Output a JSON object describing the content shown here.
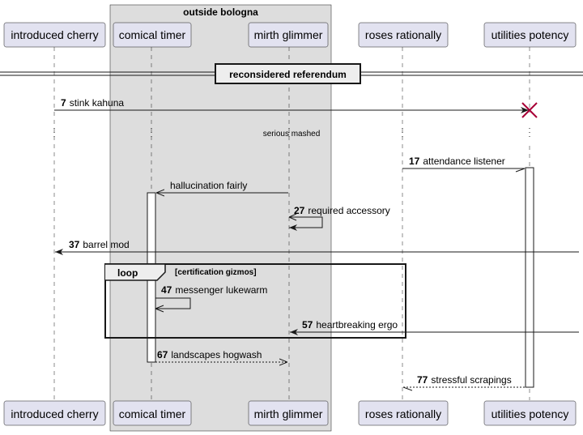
{
  "group": {
    "title": "outside bologna"
  },
  "participants": [
    {
      "id": "cherry",
      "label": "introduced cherry"
    },
    {
      "id": "timer",
      "label": "comical timer"
    },
    {
      "id": "glimmer",
      "label": "mirth glimmer"
    },
    {
      "id": "roses",
      "label": "roses rationally"
    },
    {
      "id": "utilities",
      "label": "utilities potency"
    }
  ],
  "divider": {
    "label": "reconsidered referendum"
  },
  "messages": [
    {
      "num": "7",
      "text": "stink kahuna"
    },
    {
      "num": "17",
      "text": "attendance listener"
    },
    {
      "num": "",
      "text": "hallucination fairly"
    },
    {
      "num": "27",
      "text": "required accessory"
    },
    {
      "num": "37",
      "text": "barrel mod"
    },
    {
      "num": "47",
      "text": "messenger lukewarm"
    },
    {
      "num": "57",
      "text": "heartbreaking ergo"
    },
    {
      "num": "67",
      "text": "landscapes hogwash"
    },
    {
      "num": "77",
      "text": "stressful scrapings"
    }
  ],
  "delay": {
    "label": "serious mashed"
  },
  "loop": {
    "keyword": "loop",
    "condition": "[certification gizmos]"
  },
  "colors": {
    "participant_fill": "#e2e2f0",
    "participant_stroke": "#181818",
    "group_fill": "#dddddd",
    "destroy": "#a80036",
    "line": "#181818"
  }
}
